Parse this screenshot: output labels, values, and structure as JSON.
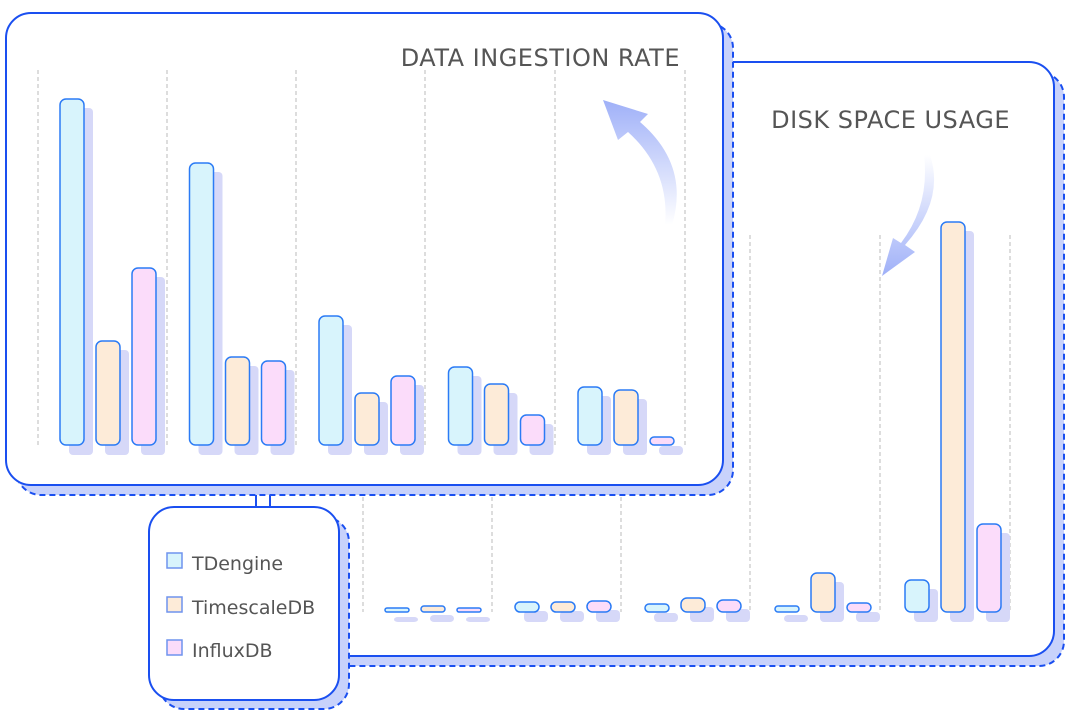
{
  "chart_data": [
    {
      "type": "bar",
      "title": "DATA INGESTION RATE",
      "categories": [
        "",
        "",
        "",
        "",
        ""
      ],
      "series": [
        {
          "name": "TDengine",
          "values": [
            346,
            282,
            129,
            78,
            58
          ]
        },
        {
          "name": "TimescaleDB",
          "values": [
            104,
            88,
            52,
            61,
            55
          ]
        },
        {
          "name": "InfluxDB",
          "values": [
            177,
            84,
            69,
            30,
            8
          ]
        }
      ],
      "grid": true,
      "ylim": [
        0,
        375
      ]
    },
    {
      "type": "bar",
      "title": "DISK SPACE USAGE",
      "categories": [
        "",
        "",
        "",
        "",
        ""
      ],
      "series": [
        {
          "name": "TDengine",
          "values": [
            4,
            10,
            8,
            6,
            32
          ]
        },
        {
          "name": "TimescaleDB",
          "values": [
            6,
            10,
            14,
            39,
            390
          ]
        },
        {
          "name": "InfluxDB",
          "values": [
            4,
            11,
            12,
            9,
            88
          ]
        }
      ],
      "grid": true,
      "ylim": [
        0,
        390
      ]
    }
  ],
  "legend": {
    "placement": "bottom-left",
    "items": [
      {
        "label": "TDengine",
        "color": "#d8f4fc"
      },
      {
        "label": "TimescaleDB",
        "color": "#fdebd8"
      },
      {
        "label": "InfluxDB",
        "color": "#fbdcfa"
      }
    ]
  },
  "colors": {
    "border": "#1a4ff0",
    "bar_stroke": "#2b7bf5",
    "shadow": "#d6d8f8",
    "arrow": "#9fb0f8"
  }
}
